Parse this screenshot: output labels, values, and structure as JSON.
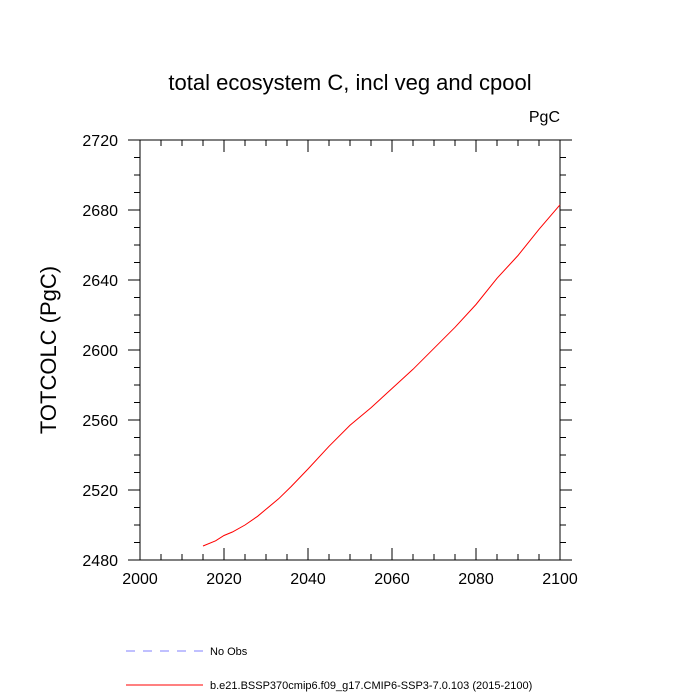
{
  "chart_data": {
    "type": "line",
    "title": "total ecosystem C, incl veg and cpool",
    "units_label": "PgC",
    "xlabel": "",
    "ylabel": "TOTCOLC  (PgC)",
    "xlim": [
      2000,
      2100
    ],
    "ylim": [
      2480,
      2720
    ],
    "x_ticks": [
      2000,
      2020,
      2040,
      2060,
      2080,
      2100
    ],
    "y_ticks": [
      2480,
      2520,
      2560,
      2600,
      2640,
      2680,
      2720
    ],
    "x_tick_labels": [
      "2000",
      "2020",
      "2040",
      "2060",
      "2080",
      "2100"
    ],
    "y_tick_labels": [
      "2480",
      "2520",
      "2560",
      "2600",
      "2640",
      "2680",
      "2720"
    ],
    "grid": false,
    "legend_placement": "bottom",
    "series": [
      {
        "name": "No Obs",
        "color": "#8080ff",
        "dash": "dashed",
        "x": [],
        "y": []
      },
      {
        "name": "b.e21.BSSP370cmip6.f09_g17.CMIP6-SSP3-7.0.103 (2015-2100)",
        "color": "#ff0000",
        "dash": "solid",
        "x": [
          2015,
          2018,
          2020,
          2022,
          2025,
          2028,
          2030,
          2033,
          2036,
          2040,
          2045,
          2050,
          2055,
          2060,
          2065,
          2070,
          2075,
          2080,
          2085,
          2090,
          2095,
          2100
        ],
        "y": [
          2488,
          2491,
          2494,
          2496,
          2500,
          2505,
          2509,
          2515,
          2522,
          2532,
          2545,
          2557,
          2567,
          2578,
          2589,
          2601,
          2613,
          2626,
          2641,
          2654,
          2669,
          2683
        ]
      }
    ]
  }
}
